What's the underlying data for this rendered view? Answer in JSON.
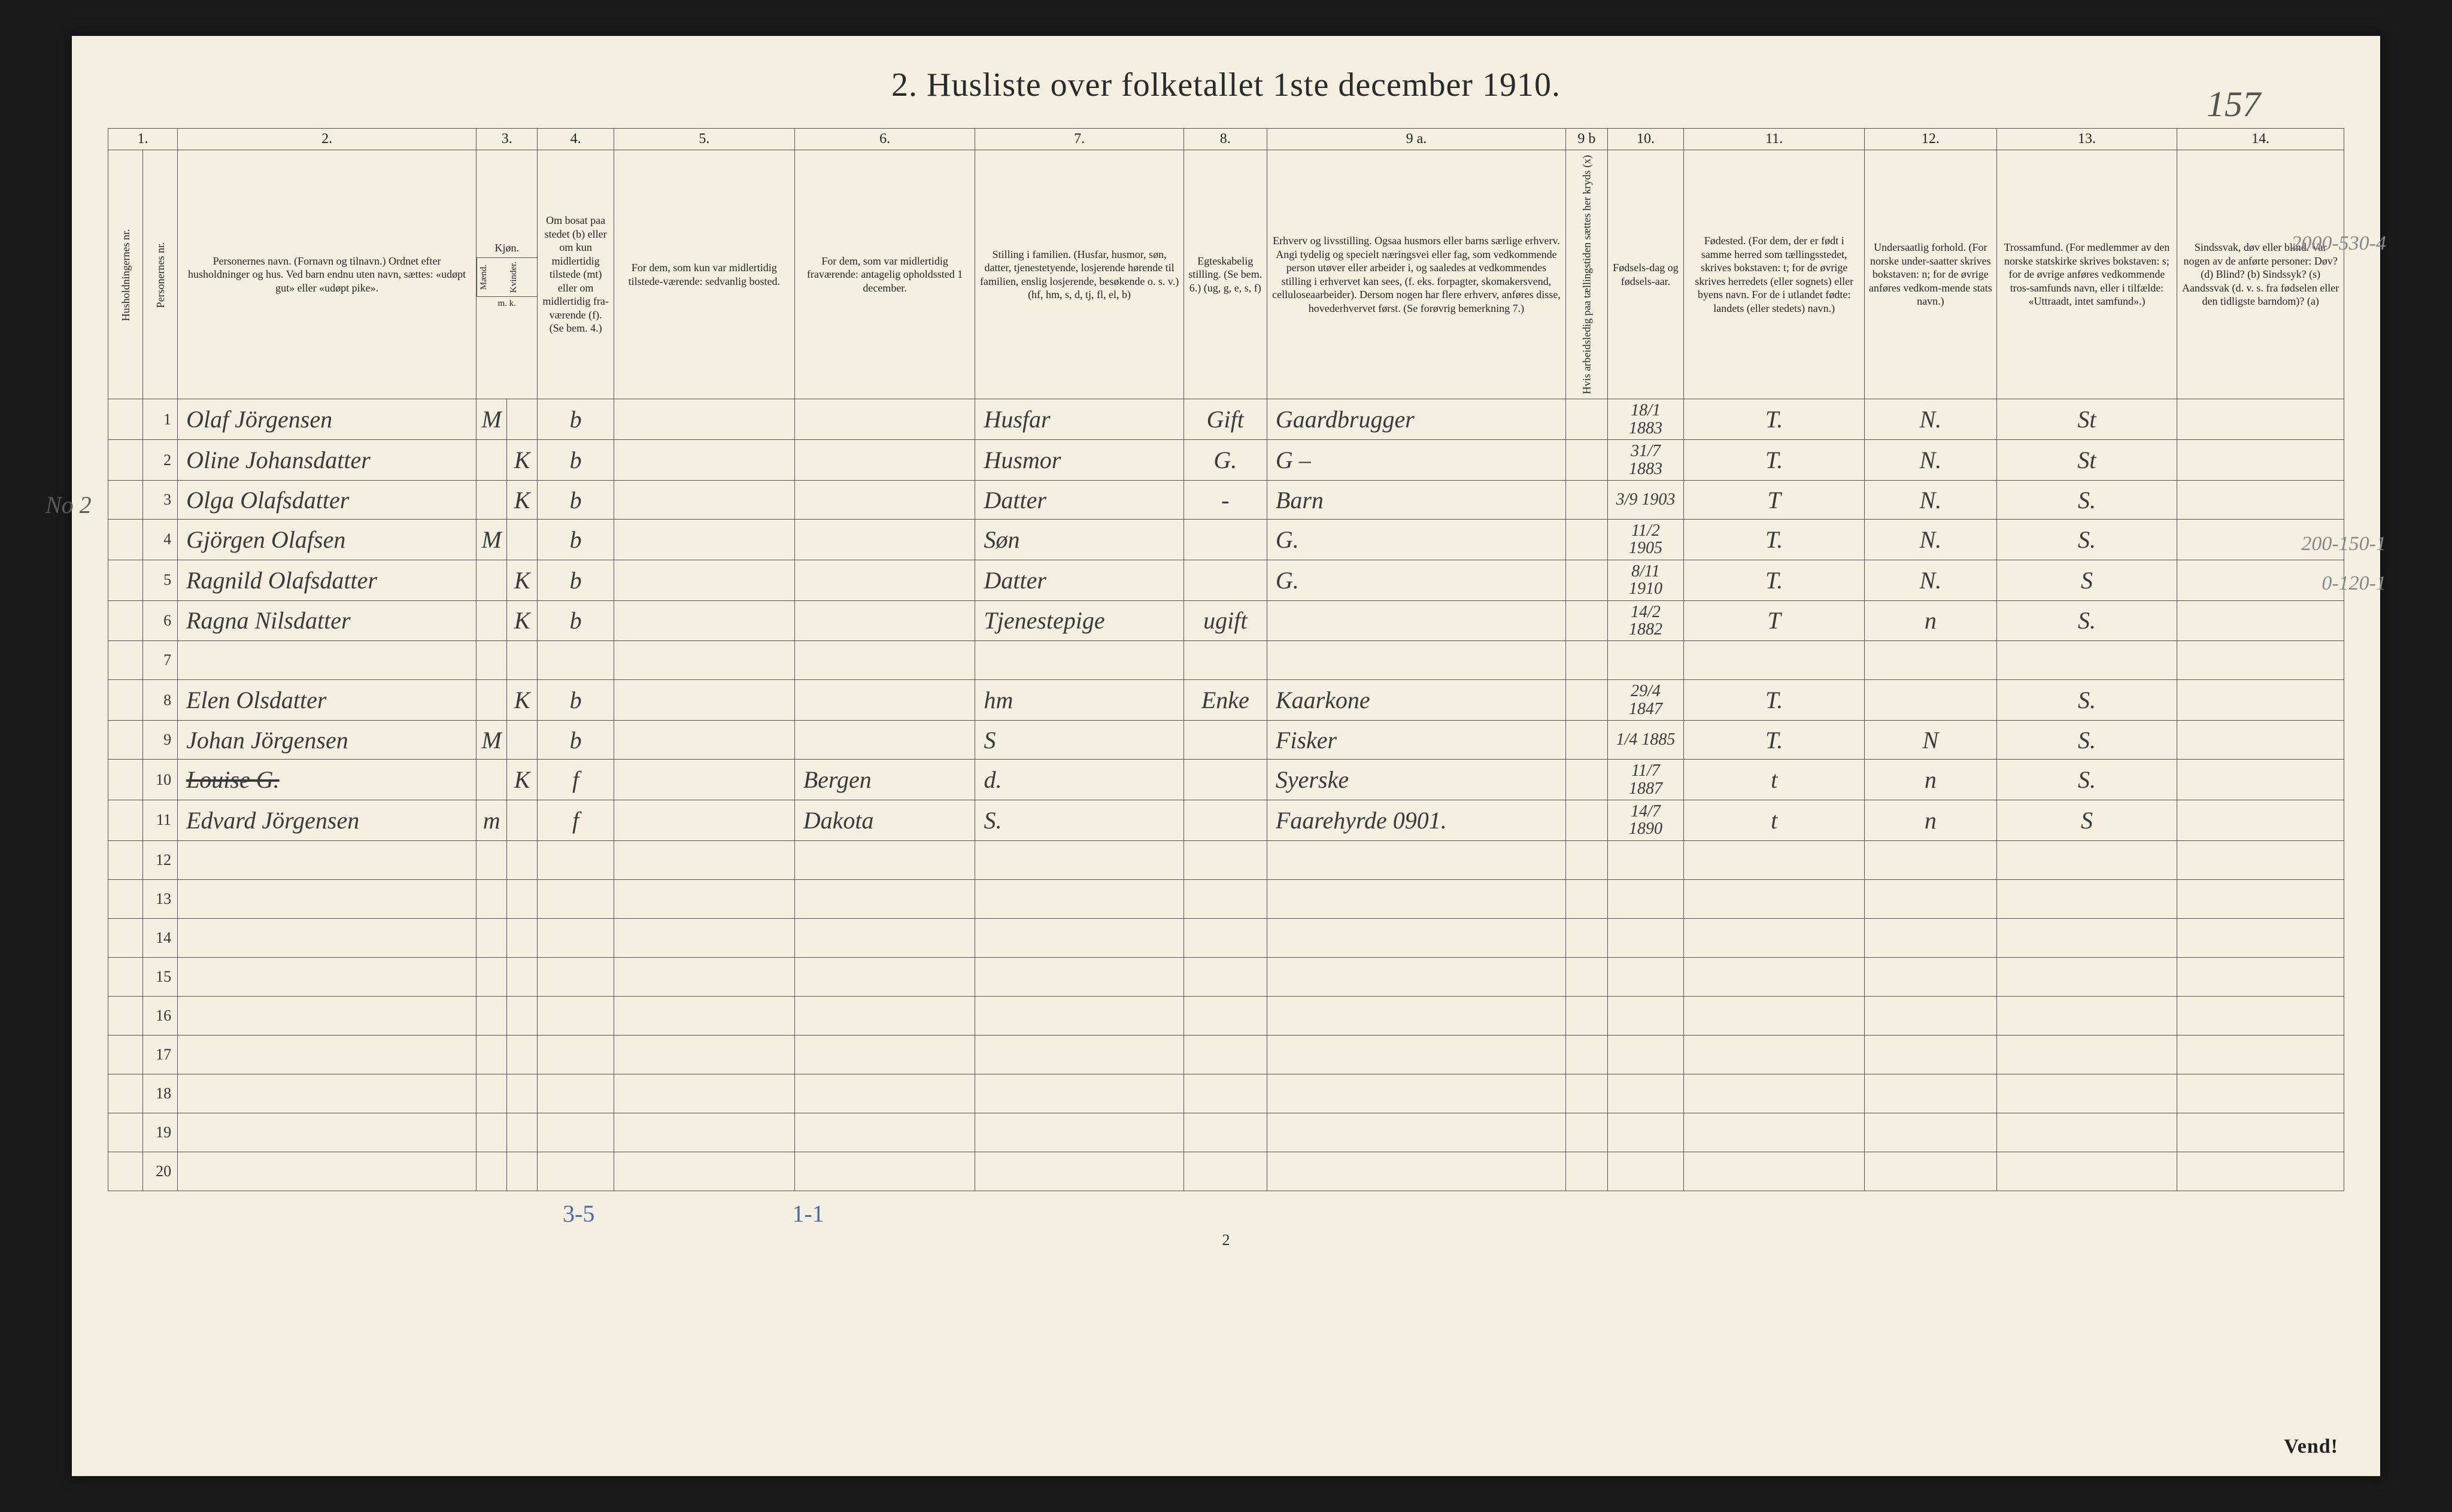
{
  "title": "2.  Husliste over folketallet 1ste december 1910.",
  "hand_page_number": "157",
  "footer_page_number": "2",
  "vend": "Vend!",
  "footer_tally_left": "3-5",
  "footer_tally_right": "1-1",
  "margin_household2": "No 2",
  "col_numbers": [
    "1.",
    "2.",
    "3.",
    "4.",
    "5.",
    "6.",
    "7.",
    "8.",
    "9 a.",
    "9 b",
    "10.",
    "11.",
    "12.",
    "13.",
    "14."
  ],
  "headers": {
    "c1a": "Husholdningernes nr.",
    "c1b": "Personernes nr.",
    "c2": "Personernes navn.\n(Fornavn og tilnavn.)\nOrdnet efter husholdninger og hus.\nVed barn endnu uten navn, sættes: «udøpt gut» eller «udøpt pike».",
    "c3": "Kjøn.",
    "c3a": "Mænd.",
    "c3b": "Kvinder.",
    "c3sub": "m.  k.",
    "c4": "Om bosat paa stedet (b) eller om kun midlertidig tilstede (mt) eller om midlertidig fra-værende (f).\n(Se bem. 4.)",
    "c5": "For dem, som kun var midlertidig tilstede-værende:\nsedvanlig bosted.",
    "c6": "For dem, som var midlertidig fraværende:\nantagelig opholdssted 1 december.",
    "c7": "Stilling i familien.\n(Husfar, husmor, søn, datter, tjenestetyende, losjerende hørende til familien, enslig losjerende, besøkende o. s. v.)\n(hf, hm, s, d, tj, fl, el, b)",
    "c8": "Egteskabelig stilling.\n(Se bem. 6.)\n(ug, g, e, s, f)",
    "c9a": "Erhverv og livsstilling.\nOgsaa husmors eller barns særlige erhverv. Angi tydelig og specielt næringsvei eller fag, som vedkommende person utøver eller arbeider i, og saaledes at vedkommendes stilling i erhvervet kan sees, (f. eks. forpagter, skomakersvend, celluloseaarbeider). Dersom nogen har flere erhverv, anføres disse, hovederhvervet først.\n(Se forøvrig bemerkning 7.)",
    "c9b": "Hvis arbeidsledig paa tællingstiden sættes her kryds (x)",
    "c10": "Fødsels-dag og fødsels-aar.",
    "c11": "Fødested.\n(For dem, der er født i samme herred som tællingsstedet, skrives bokstaven: t; for de øvrige skrives herredets (eller sognets) eller byens navn. For de i utlandet fødte: landets (eller stedets) navn.)",
    "c12": "Undersaatlig forhold.\n(For norske under-saatter skrives bokstaven: n; for de øvrige anføres vedkom-mende stats navn.)",
    "c13": "Trossamfund.\n(For medlemmer av den norske statskirke skrives bokstaven: s; for de øvrige anføres vedkommende tros-samfunds navn, eller i tilfælde: «Uttraadt, intet samfund».)",
    "c14": "Sindssvak, døv eller blind.\nVar nogen av de anførte personer:\nDøv?  (d)\nBlind?  (b)\nSindssyk?  (s)\nAandssvak (d. v. s. fra fødselen eller den tidligste barndom)?  (a)"
  },
  "pencil_right": {
    "r1": "2000-530-4",
    "r9": "200-150-1",
    "r10": "0-120-1"
  },
  "rows": [
    {
      "h": "",
      "n": "1",
      "name": "Olaf Jörgensen",
      "m": "M",
      "k": "",
      "bo": "b",
      "c5": "",
      "c6": "",
      "stilling": "Husfar",
      "egte": "Gift",
      "erhverv": "Gaardbrugger",
      "c9b": "",
      "fdato": "18/1 1883",
      "fsted": "T.",
      "under": "N.",
      "tros": "St",
      "c14": ""
    },
    {
      "h": "",
      "n": "2",
      "name": "Oline Johansdatter",
      "m": "",
      "k": "K",
      "bo": "b",
      "c5": "",
      "c6": "",
      "stilling": "Husmor",
      "egte": "G.",
      "erhverv": "G –",
      "c9b": "",
      "fdato": "31/7 1883",
      "fsted": "T.",
      "under": "N.",
      "tros": "St",
      "c14": ""
    },
    {
      "h": "",
      "n": "3",
      "name": "Olga Olafsdatter",
      "m": "",
      "k": "K",
      "bo": "b",
      "c5": "",
      "c6": "",
      "stilling": "Datter",
      "egte": "-",
      "erhverv": "Barn",
      "c9b": "",
      "fdato": "3/9 1903",
      "fsted": "T",
      "under": "N.",
      "tros": "S.",
      "c14": ""
    },
    {
      "h": "",
      "n": "4",
      "name": "Gjörgen Olafsen",
      "m": "M",
      "k": "",
      "bo": "b",
      "c5": "",
      "c6": "",
      "stilling": "Søn",
      "egte": "",
      "erhverv": "G.",
      "c9b": "",
      "fdato": "11/2 1905",
      "fsted": "T.",
      "under": "N.",
      "tros": "S.",
      "c14": ""
    },
    {
      "h": "",
      "n": "5",
      "name": "Ragnild Olafsdatter",
      "m": "",
      "k": "K",
      "bo": "b",
      "c5": "",
      "c6": "",
      "stilling": "Datter",
      "egte": "",
      "erhverv": "G.",
      "c9b": "",
      "fdato": "8/11 1910",
      "fsted": "T.",
      "under": "N.",
      "tros": "S",
      "c14": ""
    },
    {
      "h": "",
      "n": "6",
      "name": "Ragna Nilsdatter",
      "m": "",
      "k": "K",
      "bo": "b",
      "c5": "",
      "c6": "",
      "stilling": "Tjenestepige",
      "egte": "ugift",
      "erhverv": "",
      "c9b": "",
      "fdato": "14/2 1882",
      "fsted": "T",
      "under": "n",
      "tros": "S.",
      "c14": ""
    },
    {
      "h": "",
      "n": "7",
      "name": "",
      "m": "",
      "k": "",
      "bo": "",
      "c5": "",
      "c6": "",
      "stilling": "",
      "egte": "",
      "erhverv": "",
      "c9b": "",
      "fdato": "",
      "fsted": "",
      "under": "",
      "tros": "",
      "c14": ""
    },
    {
      "h": "",
      "n": "8",
      "name": "Elen Olsdatter",
      "m": "",
      "k": "K",
      "bo": "b",
      "c5": "",
      "c6": "",
      "stilling": "hm",
      "egte": "Enke",
      "erhverv": "Kaarkone",
      "c9b": "",
      "fdato": "29/4 1847",
      "fsted": "T.",
      "under": "",
      "tros": "S.",
      "c14": ""
    },
    {
      "h": "",
      "n": "9",
      "name": "Johan Jörgensen",
      "m": "M",
      "k": "",
      "bo": "b",
      "c5": "",
      "c6": "",
      "stilling": "S",
      "egte": "",
      "erhverv": "Fisker",
      "c9b": "",
      "fdato": "1/4 1885",
      "fsted": "T.",
      "under": "N",
      "tros": "S.",
      "c14": ""
    },
    {
      "h": "",
      "n": "10",
      "name": "Louise G.",
      "m": "",
      "k": "K",
      "bo": "f",
      "c5": "",
      "c6": "Bergen",
      "stilling": "d.",
      "egte": "",
      "erhverv": "Syerske",
      "c9b": "",
      "fdato": "11/7 1887",
      "fsted": "t",
      "under": "n",
      "tros": "S.",
      "c14": "",
      "strike": true
    },
    {
      "h": "",
      "n": "11",
      "name": "Edvard Jörgensen",
      "m": "m",
      "k": "",
      "bo": "f",
      "c5": "",
      "c6": "Dakota",
      "stilling": "S.",
      "egte": "",
      "erhverv": "Faarehyrde  0901.",
      "c9b": "",
      "fdato": "14/7 1890",
      "fsted": "t",
      "under": "n",
      "tros": "S",
      "c14": ""
    },
    {
      "h": "",
      "n": "12"
    },
    {
      "h": "",
      "n": "13"
    },
    {
      "h": "",
      "n": "14"
    },
    {
      "h": "",
      "n": "15"
    },
    {
      "h": "",
      "n": "16"
    },
    {
      "h": "",
      "n": "17"
    },
    {
      "h": "",
      "n": "18"
    },
    {
      "h": "",
      "n": "19"
    },
    {
      "h": "",
      "n": "20"
    }
  ]
}
